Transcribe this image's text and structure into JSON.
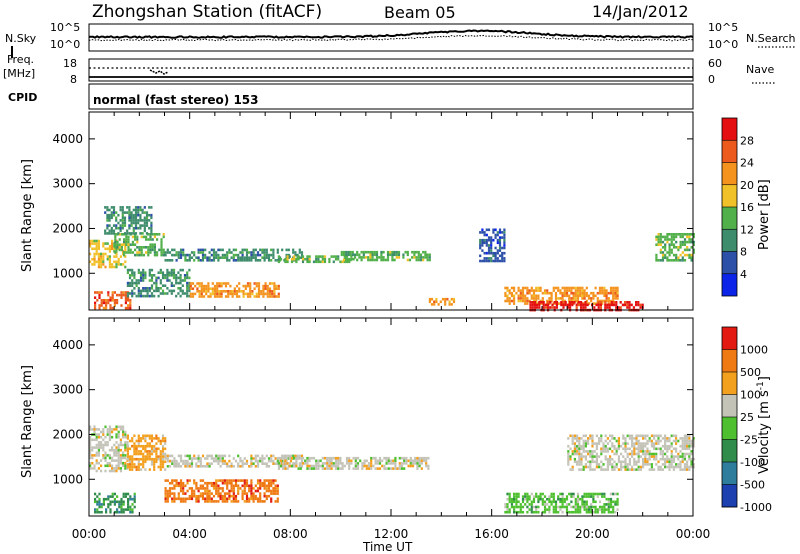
{
  "header": {
    "station": "Zhongshan Station (fitACF)",
    "beam": "Beam 05",
    "date": "14/Jan/2012"
  },
  "strips": {
    "nsky_label": "N.Sky",
    "nsky_ticks": [
      "10^5",
      "10^0"
    ],
    "nsearch_label": "N.Search",
    "nsearch_ticks": [
      "10^5",
      "10^0"
    ],
    "freq_label": "Freq.",
    "freq_unit": "[MHz]",
    "freq_ticks": [
      "18",
      "8"
    ],
    "nave_label": "Nave",
    "nave_ticks": [
      "60",
      "0"
    ],
    "cpid_label": "CPID",
    "cpid_value": "normal (fast stereo) 153"
  },
  "colors": {
    "power": [
      "#0b24e8",
      "#2c4fa8",
      "#3d8c6c",
      "#52b04a",
      "#f1c12a",
      "#f4941f",
      "#ec5a1d",
      "#e40f10"
    ],
    "velocity": [
      "#1c40b0",
      "#2f7d9c",
      "#2f8c4a",
      "#4ec02f",
      "#c4c3b8",
      "#f4a01f",
      "#ef7a14",
      "#e21a12"
    ]
  },
  "chart_data": [
    {
      "type": "heatmap",
      "ylabel": "Slant Range [km]",
      "xlabel": "Time UT",
      "x_ticks": [
        "00:00",
        "04:00",
        "08:00",
        "12:00",
        "16:00",
        "20:00",
        "00:00"
      ],
      "y_ticks": [
        "1000",
        "2000",
        "3000",
        "4000"
      ],
      "xlim_hours": [
        0,
        24
      ],
      "ylim_km": [
        180,
        4600
      ],
      "colorbar": {
        "label": "Power [dB]",
        "ticks": [
          "4",
          "8",
          "12",
          "16",
          "20",
          "24",
          "28"
        ],
        "range": [
          0,
          30
        ]
      },
      "echo_regions": [
        {
          "t0": 0.0,
          "t1": 1.4,
          "r0": 1150,
          "r1": 1750,
          "class": 4
        },
        {
          "t0": 0.2,
          "t1": 1.6,
          "r0": 250,
          "r1": 600,
          "class": 6
        },
        {
          "t0": 1.0,
          "t1": 3.0,
          "r0": 1400,
          "r1": 1900,
          "class": 3
        },
        {
          "t0": 0.6,
          "t1": 2.5,
          "r0": 1900,
          "r1": 2500,
          "class": 2
        },
        {
          "t0": 1.5,
          "t1": 4.0,
          "r0": 500,
          "r1": 1100,
          "class": 2
        },
        {
          "t0": 3.0,
          "t1": 8.5,
          "r0": 1300,
          "r1": 1550,
          "class": 2
        },
        {
          "t0": 4.0,
          "t1": 7.5,
          "r0": 500,
          "r1": 800,
          "class": 5
        },
        {
          "t0": 7.5,
          "t1": 10.5,
          "r0": 1250,
          "r1": 1400,
          "class": 3
        },
        {
          "t0": 10.0,
          "t1": 13.5,
          "r0": 1300,
          "r1": 1500,
          "class": 3
        },
        {
          "t0": 13.5,
          "t1": 14.5,
          "r0": 300,
          "r1": 450,
          "class": 5
        },
        {
          "t0": 15.5,
          "t1": 16.5,
          "r0": 1300,
          "r1": 2000,
          "class": 1
        },
        {
          "t0": 16.5,
          "t1": 21.0,
          "r0": 300,
          "r1": 700,
          "class": 5
        },
        {
          "t0": 17.5,
          "t1": 22.0,
          "r0": 200,
          "r1": 380,
          "class": 7
        },
        {
          "t0": 22.5,
          "t1": 24.0,
          "r0": 1300,
          "r1": 1900,
          "class": 3
        }
      ]
    },
    {
      "type": "heatmap",
      "ylabel": "Slant Range [km]",
      "xlabel": "Time UT",
      "x_ticks": [
        "00:00",
        "04:00",
        "08:00",
        "12:00",
        "16:00",
        "20:00",
        "00:00"
      ],
      "y_ticks": [
        "1000",
        "2000",
        "3000",
        "4000"
      ],
      "xlim_hours": [
        0,
        24
      ],
      "ylim_km": [
        180,
        4600
      ],
      "colorbar": {
        "label": "Velocity [m s",
        "label_sup": "-1",
        "label_end": "]",
        "ticks": [
          "1000",
          "500",
          "100",
          "25",
          "-25",
          "-100",
          "-500",
          "-1000"
        ]
      },
      "echo_regions": [
        {
          "t0": 0.0,
          "t1": 1.5,
          "r0": 1200,
          "r1": 2200,
          "class": 4
        },
        {
          "t0": 0.2,
          "t1": 1.8,
          "r0": 250,
          "r1": 700,
          "class": 2
        },
        {
          "t0": 1.5,
          "t1": 3.0,
          "r0": 1200,
          "r1": 2000,
          "class": 5
        },
        {
          "t0": 3.0,
          "t1": 7.5,
          "r0": 500,
          "r1": 1000,
          "class": 6
        },
        {
          "t0": 3.0,
          "t1": 8.5,
          "r0": 1300,
          "r1": 1550,
          "class": 4
        },
        {
          "t0": 7.5,
          "t1": 13.5,
          "r0": 1250,
          "r1": 1500,
          "class": 4
        },
        {
          "t0": 16.5,
          "t1": 21.0,
          "r0": 250,
          "r1": 700,
          "class": 3
        },
        {
          "t0": 19.0,
          "t1": 24.0,
          "r0": 1200,
          "r1": 2000,
          "class": 4
        }
      ]
    }
  ]
}
